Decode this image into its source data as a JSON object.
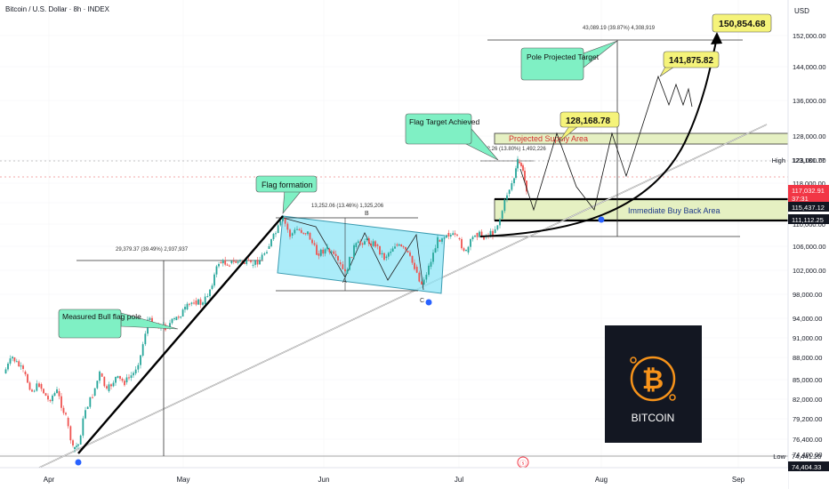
{
  "header": {
    "title": "Bitcoin / U.S. Dollar · 8h · INDEX",
    "currency": "USD"
  },
  "chart_data": {
    "type": "candlestick",
    "x_ticks": [
      "Apr",
      "May",
      "Jun",
      "Jul",
      "Aug",
      "Sep"
    ],
    "y_ticks": [
      74400,
      76400,
      79200,
      82000,
      85000,
      88000,
      91000,
      94000,
      98000,
      102000,
      106000,
      110000,
      114000,
      118000,
      123000,
      128000,
      136000,
      144000,
      152000
    ],
    "y_tick_labels": [
      "74,400.00",
      "76,400.00",
      "79,200.00",
      "82,000.00",
      "85,000.00",
      "88,000.00",
      "91,000.00",
      "94,000.00",
      "98,000.00",
      "102,000.00",
      "106,000.00",
      "110,000.00",
      "114,000.00",
      "118,000.00",
      "123,000.00",
      "128,000.00",
      "136,000.00",
      "144,000.00",
      "152,000.00"
    ],
    "price_tags": [
      {
        "label": "High",
        "value": "123,181.77"
      },
      {
        "label": "",
        "value": "117,032.91",
        "sub": "37:31",
        "color": "#f23645"
      },
      {
        "label": "",
        "value": "115,437.12",
        "color": "#131722"
      },
      {
        "label": "",
        "value": "111,112.25",
        "color": "#131722"
      },
      {
        "label": "Low",
        "value": "74,441.20"
      },
      {
        "label": "",
        "value": "74,404.33",
        "color": "#131722"
      }
    ],
    "annotations": {
      "measured_pole": "29,379.37 (39.49%) 2,937,937",
      "flag_measure": "13,252.06 (13.46%) 1,325,206",
      "flag_target_measure": "922.26 (13.80%) 1,492,226",
      "pole_projection_measure": "43,089.19 (39.87%) 4,308,919",
      "flag_point_b": "B",
      "flag_point_a": "A",
      "flag_point_c": "C"
    },
    "callouts": {
      "measured_bull": "Measured Bull flag pole",
      "flag_formation": "Flag formation",
      "flag_target": "Flag Target Achieved",
      "pole_projected": "Pole Projected Target"
    },
    "zones": {
      "supply": "Projected Supply Area",
      "buyback": "Immediate Buy Back Area"
    },
    "targets": [
      "128,168.78",
      "141,875.82",
      "150,854.68"
    ],
    "logo_text": "BITCOIN"
  },
  "colors": {
    "up": "#26a69a",
    "down": "#ef5350",
    "callout": "#7ff0c4",
    "target": "#f5f37a",
    "zone": "#eaf2c8",
    "flag": "#86e3f5"
  }
}
